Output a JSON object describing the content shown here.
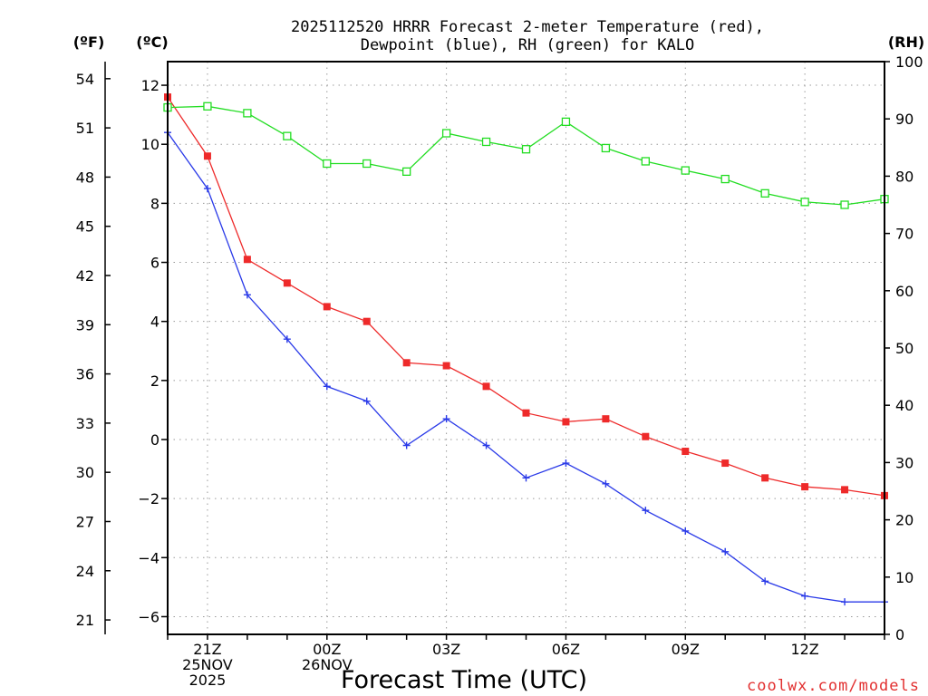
{
  "chart_data": {
    "type": "line",
    "title_lines": [
      "2025112520 HRRR Forecast 2-meter Temperature (red),",
      "Dewpoint (blue), RH (green) for KALO"
    ],
    "xlabel": "Forecast Time (UTC)",
    "credit": "coolwx.com/models",
    "units": {
      "fahrenheit": "(ºF)",
      "celsius": "(ºC)",
      "rh": "(RH)"
    },
    "x": [
      20,
      21,
      22,
      23,
      24,
      25,
      26,
      27,
      28,
      29,
      30,
      31,
      32,
      33,
      34,
      35,
      36,
      37,
      38
    ],
    "xlim": [
      20,
      38
    ],
    "x_ticks": [
      {
        "x": 21,
        "lines": [
          "21Z",
          "25NOV",
          "2025"
        ]
      },
      {
        "x": 24,
        "lines": [
          "00Z",
          "26NOV"
        ]
      },
      {
        "x": 27,
        "lines": [
          "03Z"
        ]
      },
      {
        "x": 30,
        "lines": [
          "06Z"
        ]
      },
      {
        "x": 33,
        "lines": [
          "09Z"
        ]
      },
      {
        "x": 36,
        "lines": [
          "12Z"
        ]
      }
    ],
    "celsius_axis": {
      "range": [
        -6.6,
        12.8
      ],
      "ticks": [
        12,
        10,
        8,
        6,
        4,
        2,
        0,
        -2,
        -4,
        -6
      ]
    },
    "fahrenheit_axis": {
      "ticks": [
        54,
        51,
        48,
        45,
        42,
        39,
        36,
        33,
        30,
        27,
        24,
        21
      ]
    },
    "rh_axis": {
      "range": [
        0,
        100
      ],
      "ticks": [
        100,
        90,
        80,
        70,
        60,
        50,
        40,
        30,
        20,
        10,
        0
      ]
    },
    "series": [
      {
        "name": "Temperature",
        "axis": "celsius",
        "color": "#ee2a2a",
        "marker": "filled-square",
        "values": [
          11.6,
          9.6,
          6.1,
          5.3,
          4.5,
          4.0,
          2.6,
          2.5,
          1.8,
          0.9,
          0.6,
          0.7,
          0.1,
          -0.4,
          -0.8,
          -1.3,
          -1.6,
          -1.7,
          -1.9
        ]
      },
      {
        "name": "Dewpoint",
        "axis": "celsius",
        "color": "#2a3ae8",
        "marker": "plus",
        "values": [
          10.4,
          8.5,
          4.9,
          3.4,
          1.8,
          1.3,
          -0.2,
          0.7,
          -0.2,
          -1.3,
          -0.8,
          -1.5,
          -2.4,
          -3.1,
          -3.8,
          -4.8,
          -5.3,
          -5.5,
          -5.5
        ]
      },
      {
        "name": "RH",
        "axis": "rh",
        "color": "#22dd22",
        "marker": "open-square",
        "values": [
          92,
          92.2,
          91,
          87,
          82.2,
          82.2,
          80.8,
          87.5,
          86,
          84.7,
          89.5,
          84.9,
          82.6,
          81,
          79.5,
          77,
          75.5,
          75,
          76
        ]
      }
    ]
  }
}
